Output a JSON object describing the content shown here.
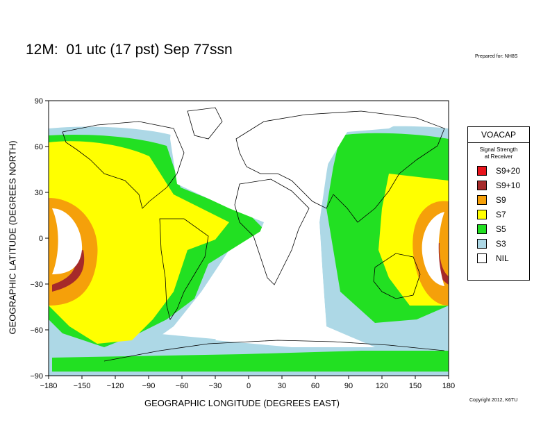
{
  "header": {
    "title": "12M:  01 utc (17 pst) Sep 77ssn",
    "prepared_for": "Prepared for: NH8S"
  },
  "footer": {
    "copyright": "Copyright 2012, K6TU"
  },
  "axes": {
    "xlabel": "GEOGRAPHIC LONGITUDE (DEGREES EAST)",
    "ylabel": "GEOGRAPHIC LATITUDE (DEGREES NORTH)",
    "xticks": [
      "−180",
      "−150",
      "−120",
      "−90",
      "−60",
      "−30",
      "0",
      "30",
      "60",
      "90",
      "120",
      "150",
      "180"
    ],
    "yticks": [
      "90",
      "60",
      "30",
      "0",
      "−30",
      "−60",
      "−90"
    ],
    "xlim": [
      -180,
      180
    ],
    "ylim": [
      -90,
      90
    ]
  },
  "legend": {
    "title": "VOACAP",
    "subtitle_line1": "Signal Strength",
    "subtitle_line2": "at Receiver",
    "items": [
      {
        "label": "S9+20",
        "color": "#e8141c"
      },
      {
        "label": "S9+10",
        "color": "#a52a2a"
      },
      {
        "label": "S9",
        "color": "#f5a00a"
      },
      {
        "label": "S7",
        "color": "#ffff00"
      },
      {
        "label": "S5",
        "color": "#22e022"
      },
      {
        "label": "S3",
        "color": "#add8e6"
      },
      {
        "label": "NIL",
        "color": "#ffffff"
      }
    ]
  },
  "map": {
    "type": "coverage_map",
    "projection": "equirectangular",
    "colors": {
      "S3": "#add8e6",
      "S5": "#22e022",
      "S7": "#ffff00",
      "S9": "#f5a00a",
      "S9+10": "#a52a2a",
      "land_outline": "#000000"
    }
  }
}
